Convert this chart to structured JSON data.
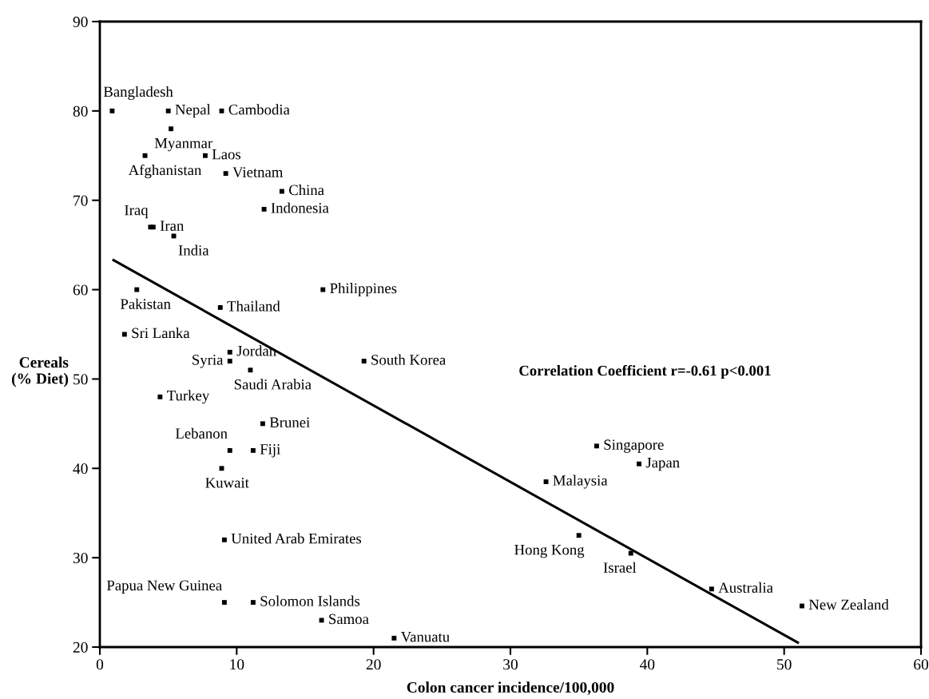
{
  "chart_data": {
    "type": "scatter",
    "xlabel": "Colon cancer incidence/100,000",
    "ylabel": "Cereals\n(% Diet)",
    "xlim": [
      0,
      60
    ],
    "ylim": [
      20,
      90
    ],
    "xticks": [
      0,
      10,
      20,
      30,
      40,
      50,
      60
    ],
    "yticks": [
      20,
      30,
      40,
      50,
      60,
      70,
      80,
      90
    ],
    "grid": false,
    "legend": false,
    "series": [
      {
        "color": "#000000",
        "marker": "square",
        "x": [
          0.9,
          5.0,
          8.9,
          5.2,
          3.3,
          7.7,
          9.2,
          13.3,
          12.0,
          3.7,
          3.9,
          5.4,
          2.7,
          16.3,
          8.8,
          1.8,
          9.5,
          9.5,
          11.0,
          19.3,
          4.4,
          11.9,
          9.5,
          11.2,
          8.9,
          9.1,
          9.1,
          11.2,
          16.2,
          21.5,
          36.3,
          39.4,
          32.6,
          35.0,
          38.8,
          44.7,
          51.3
        ],
        "values": [
          80,
          80,
          80,
          78,
          75,
          75,
          73,
          71,
          69,
          67,
          67,
          66,
          60,
          60,
          58,
          55,
          53,
          52,
          51,
          52,
          48,
          45,
          42,
          42,
          40,
          32,
          25,
          25,
          23,
          21,
          42.5,
          40.5,
          38.5,
          32.5,
          30.5,
          26.5,
          24.6
        ]
      },
      {
        "type": "line",
        "color": "#000000",
        "marker": "none",
        "line_style": "solid",
        "x": [
          1,
          51
        ],
        "values": [
          63.3,
          20.5
        ]
      }
    ],
    "annotations": [
      {
        "text": "Bangladesh",
        "x": 0.9,
        "y": 80
      },
      {
        "text": "Nepal",
        "x": 5.0,
        "y": 80
      },
      {
        "text": "Cambodia",
        "x": 8.9,
        "y": 80
      },
      {
        "text": "Myanmar",
        "x": 5.2,
        "y": 78
      },
      {
        "text": "Afghanistan",
        "x": 3.3,
        "y": 75
      },
      {
        "text": "Laos",
        "x": 7.7,
        "y": 75
      },
      {
        "text": "Vietnam",
        "x": 9.2,
        "y": 73
      },
      {
        "text": "China",
        "x": 13.3,
        "y": 71
      },
      {
        "text": "Indonesia",
        "x": 12.0,
        "y": 69
      },
      {
        "text": "Iraq",
        "x": 3.7,
        "y": 67
      },
      {
        "text": "Iran",
        "x": 3.9,
        "y": 67
      },
      {
        "text": "India",
        "x": 5.4,
        "y": 66
      },
      {
        "text": "Pakistan",
        "x": 2.7,
        "y": 60
      },
      {
        "text": "Philippines",
        "x": 16.3,
        "y": 60
      },
      {
        "text": "Thailand",
        "x": 8.8,
        "y": 58
      },
      {
        "text": "Sri Lanka",
        "x": 1.8,
        "y": 55
      },
      {
        "text": "Jordan",
        "x": 9.5,
        "y": 53
      },
      {
        "text": "Syria",
        "x": 9.5,
        "y": 52
      },
      {
        "text": "Saudi Arabia",
        "x": 11.0,
        "y": 51
      },
      {
        "text": "South Korea",
        "x": 19.3,
        "y": 52
      },
      {
        "text": "Turkey",
        "x": 4.4,
        "y": 48
      },
      {
        "text": "Brunei",
        "x": 11.9,
        "y": 45
      },
      {
        "text": "Lebanon",
        "x": 9.5,
        "y": 42
      },
      {
        "text": "Fiji",
        "x": 11.2,
        "y": 42
      },
      {
        "text": "Kuwait",
        "x": 8.9,
        "y": 40
      },
      {
        "text": "United Arab Emirates",
        "x": 9.1,
        "y": 32
      },
      {
        "text": "Papua New Guinea",
        "x": 9.1,
        "y": 25
      },
      {
        "text": "Solomon Islands",
        "x": 11.2,
        "y": 25
      },
      {
        "text": "Samoa",
        "x": 16.2,
        "y": 23
      },
      {
        "text": "Vanuatu",
        "x": 21.5,
        "y": 21
      },
      {
        "text": "Singapore",
        "x": 36.3,
        "y": 42.5
      },
      {
        "text": "Japan",
        "x": 39.4,
        "y": 40.5
      },
      {
        "text": "Malaysia",
        "x": 32.6,
        "y": 38.5
      },
      {
        "text": "Hong Kong",
        "x": 35.0,
        "y": 32.5
      },
      {
        "text": "Israel",
        "x": 38.8,
        "y": 30.5
      },
      {
        "text": "Australia",
        "x": 44.7,
        "y": 26.5
      },
      {
        "text": "New Zealand",
        "x": 51.3,
        "y": 24.6
      },
      "Correlation Coefficient r=-0.61 p<0.001"
    ]
  }
}
